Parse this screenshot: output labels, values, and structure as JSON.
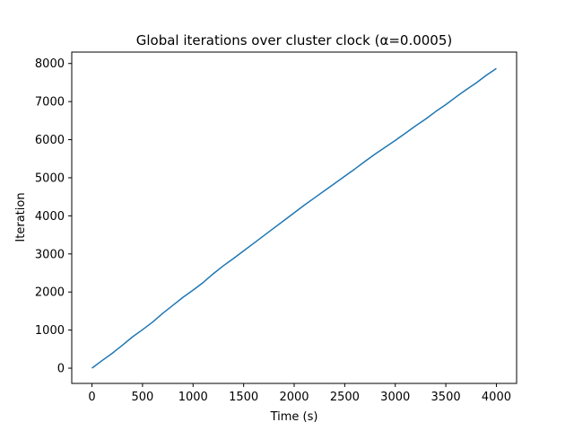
{
  "chart_data": {
    "type": "line",
    "title": "Global iterations over cluster clock (α=0.0005)",
    "xlabel": "Time (s)",
    "ylabel": "Iteration",
    "xlim": [
      -200,
      4200
    ],
    "ylim": [
      -400,
      8300
    ],
    "x_ticks": [
      0,
      500,
      1000,
      1500,
      2000,
      2500,
      3000,
      3500,
      4000
    ],
    "y_ticks": [
      0,
      1000,
      2000,
      3000,
      4000,
      5000,
      6000,
      7000,
      8000
    ],
    "grid": false,
    "legend": "none",
    "series": [
      {
        "color": "#1f77b4",
        "x": [
          0,
          100,
          200,
          300,
          400,
          500,
          600,
          700,
          800,
          900,
          1000,
          1100,
          1200,
          1300,
          1400,
          1500,
          1600,
          1700,
          1800,
          1900,
          2000,
          2100,
          2200,
          2300,
          2400,
          2500,
          2600,
          2700,
          2800,
          2900,
          3000,
          3100,
          3200,
          3300,
          3400,
          3500,
          3600,
          3700,
          3800,
          3900,
          4000
        ],
        "y": [
          0,
          200,
          390,
          600,
          820,
          1010,
          1210,
          1440,
          1650,
          1860,
          2050,
          2250,
          2480,
          2690,
          2880,
          3080,
          3280,
          3480,
          3680,
          3880,
          4080,
          4280,
          4470,
          4660,
          4850,
          5040,
          5230,
          5430,
          5620,
          5800,
          5980,
          6170,
          6360,
          6540,
          6740,
          6920,
          7120,
          7310,
          7490,
          7690,
          7870
        ]
      }
    ]
  }
}
